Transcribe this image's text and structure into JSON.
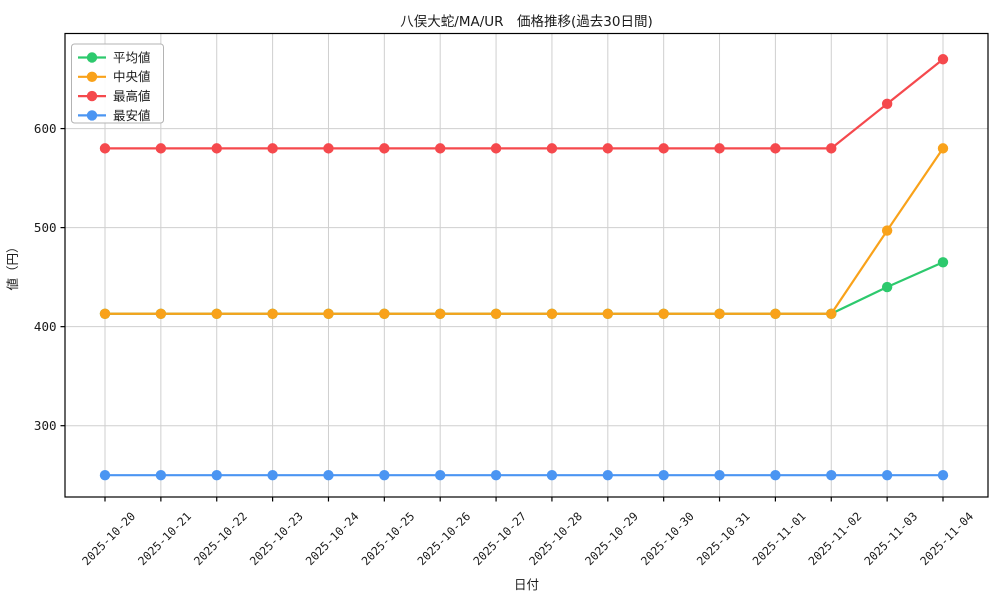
{
  "page": {
    "background": "#ffffff"
  },
  "chart_data": {
    "type": "line",
    "title": "八俣大蛇/MA/UR　価格推移(過去30日間)",
    "xlabel": "日付",
    "ylabel": "値（円）",
    "categories": [
      "2025-10-20",
      "2025-10-21",
      "2025-10-22",
      "2025-10-23",
      "2025-10-24",
      "2025-10-25",
      "2025-10-26",
      "2025-10-27",
      "2025-10-28",
      "2025-10-29",
      "2025-10-30",
      "2025-10-31",
      "2025-11-01",
      "2025-11-02",
      "2025-11-03",
      "2025-11-04"
    ],
    "yticks": [
      300,
      400,
      500,
      600
    ],
    "ylim": [
      228,
      696
    ],
    "grid": true,
    "legend_position": "upper-left",
    "series": [
      {
        "key": "average",
        "name": "平均値",
        "color": "#2dc96d",
        "values": [
          413,
          413,
          413,
          413,
          413,
          413,
          413,
          413,
          413,
          413,
          413,
          413,
          413,
          413,
          440,
          465
        ]
      },
      {
        "key": "median",
        "name": "中央値",
        "color": "#f9a21a",
        "values": [
          413,
          413,
          413,
          413,
          413,
          413,
          413,
          413,
          413,
          413,
          413,
          413,
          413,
          413,
          497,
          580
        ]
      },
      {
        "key": "max",
        "name": "最高値",
        "color": "#f5494d",
        "values": [
          580,
          580,
          580,
          580,
          580,
          580,
          580,
          580,
          580,
          580,
          580,
          580,
          580,
          580,
          625,
          670
        ]
      },
      {
        "key": "min",
        "name": "最安値",
        "color": "#4b95f2",
        "values": [
          250,
          250,
          250,
          250,
          250,
          250,
          250,
          250,
          250,
          250,
          250,
          250,
          250,
          250,
          250,
          250
        ]
      }
    ],
    "colors": {
      "grid": "#cfcfcf",
      "axis_border": "#000000",
      "text": "#1a1a1a",
      "legend_border": "#b3b3b3",
      "legend_bg": "#ffffff"
    }
  }
}
